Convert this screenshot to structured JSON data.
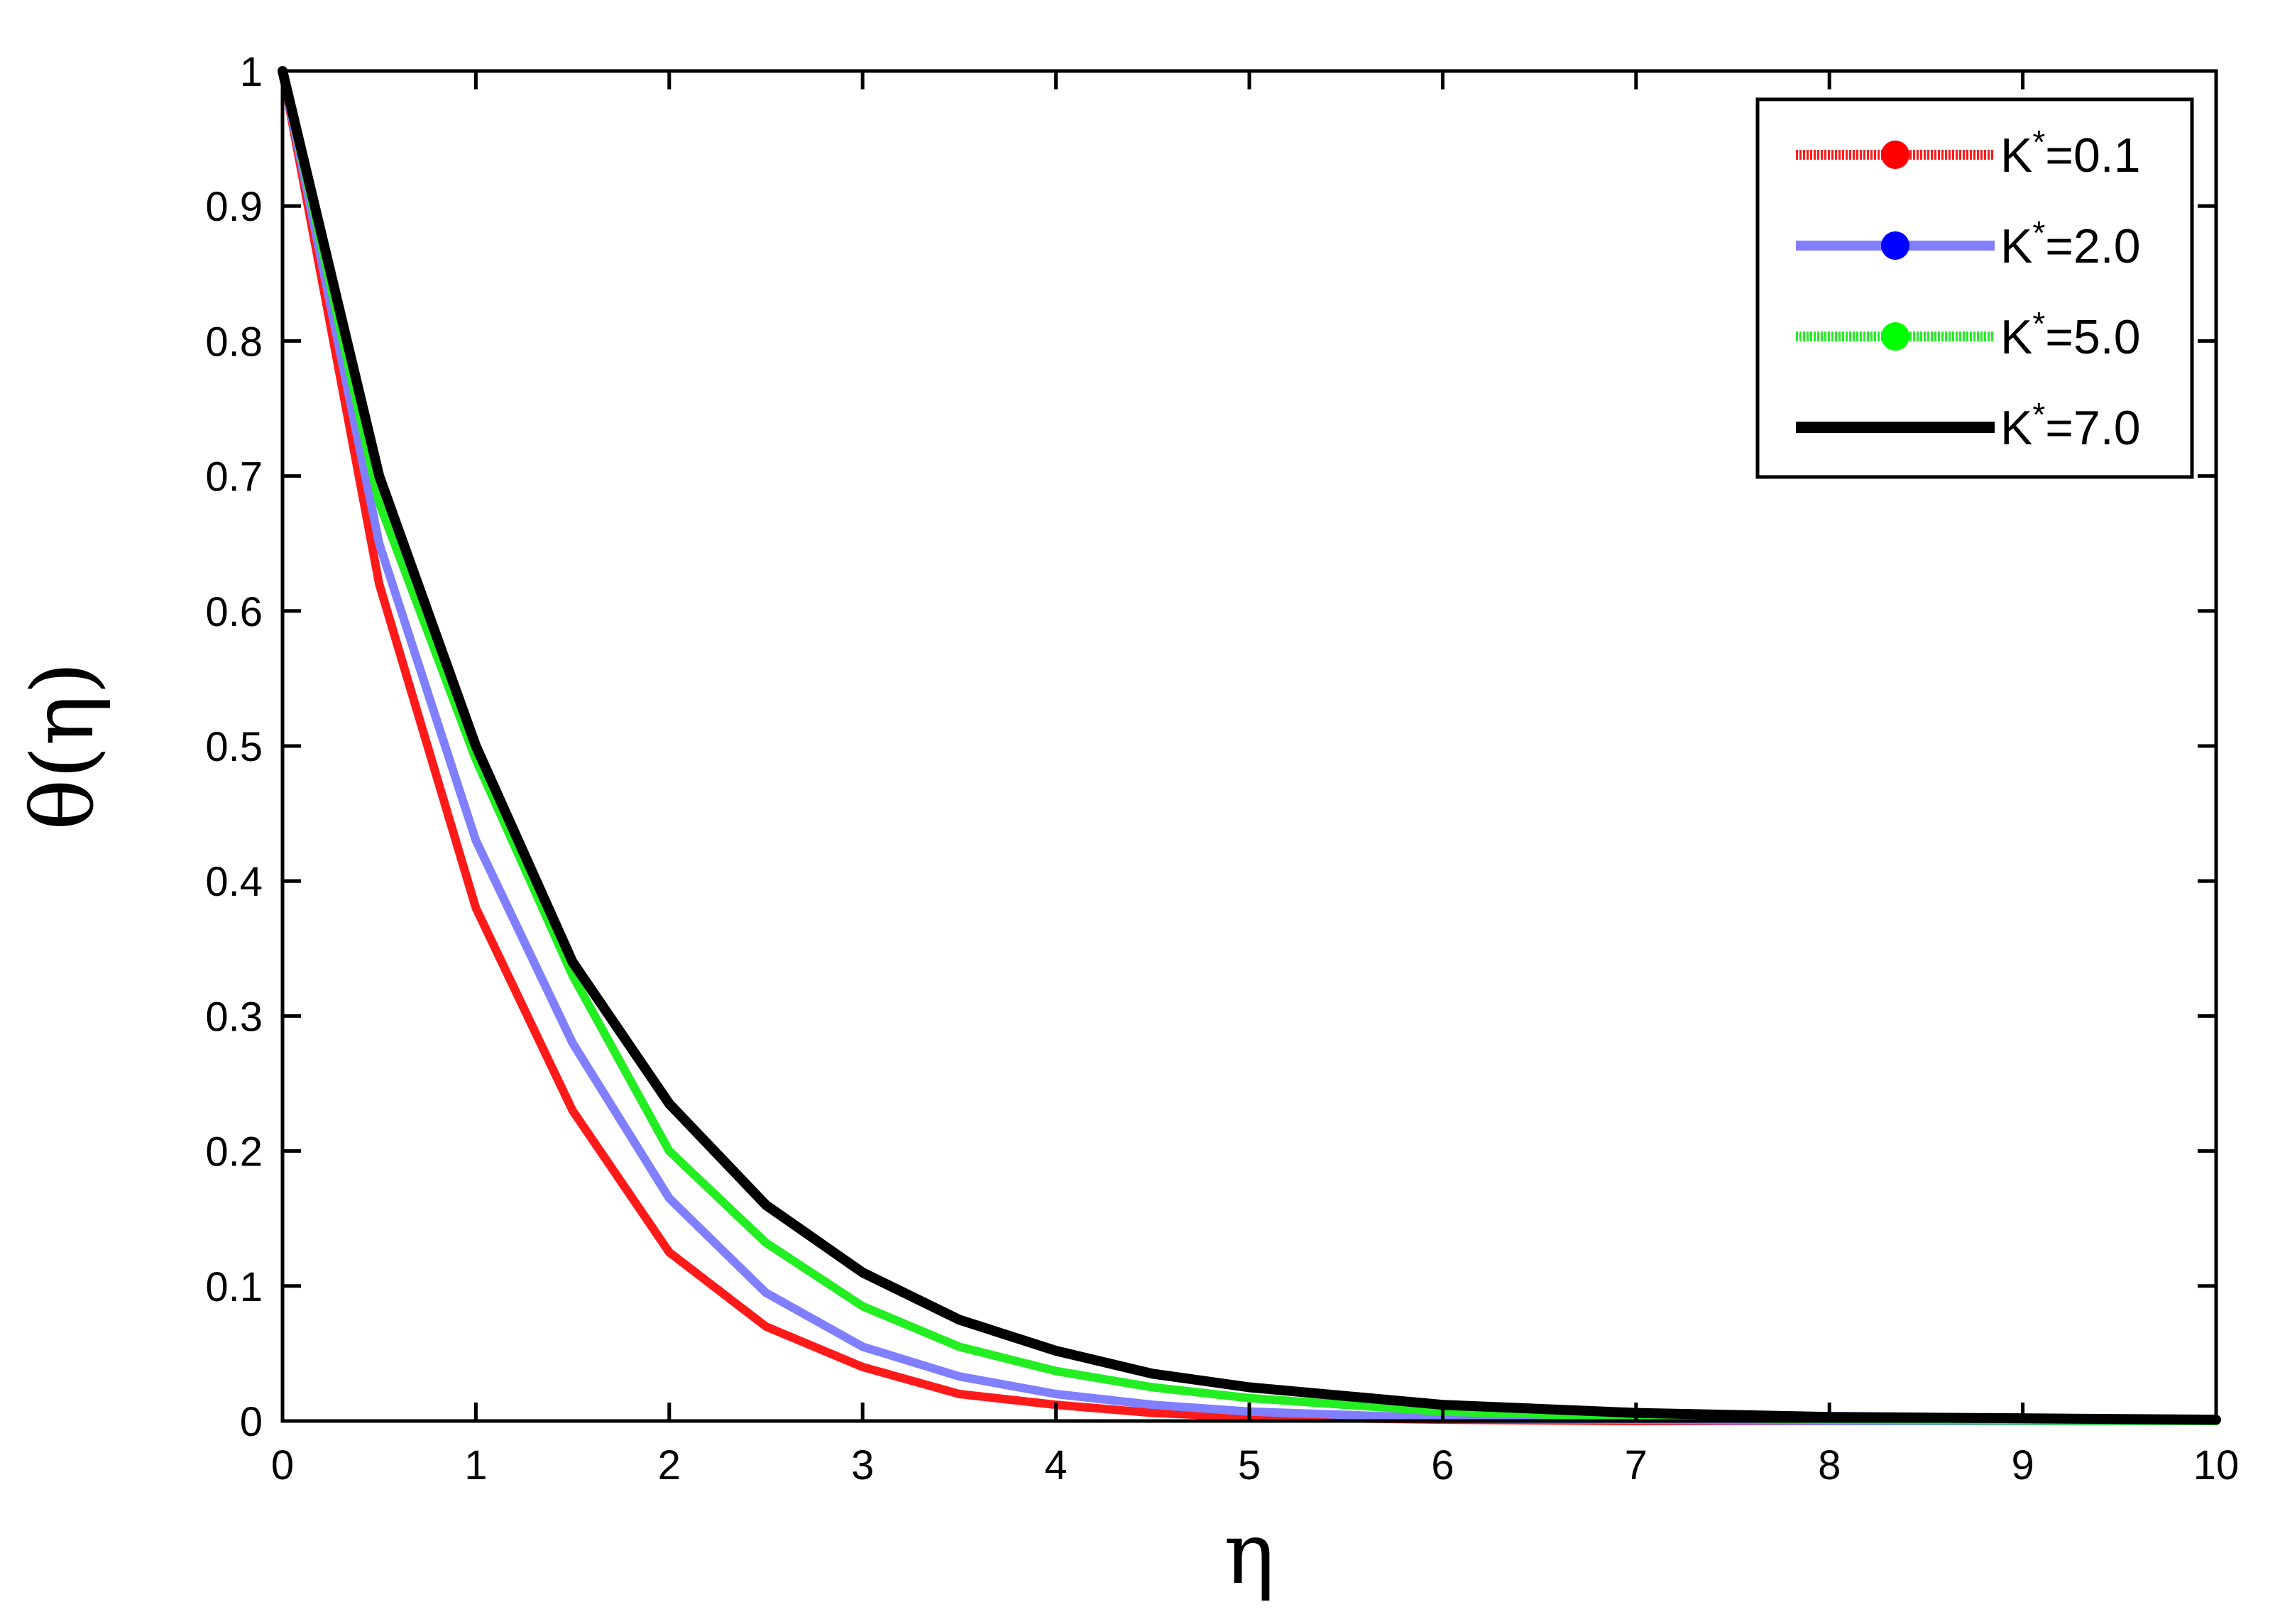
{
  "chart_data": {
    "type": "line",
    "xlabel": "η",
    "ylabel": "θ(η)",
    "xlim": [
      0,
      10
    ],
    "ylim": [
      0,
      1
    ],
    "x_ticks": [
      "0",
      "1",
      "2",
      "3",
      "4",
      "5",
      "6",
      "7",
      "8",
      "9",
      "10"
    ],
    "y_ticks": [
      "0",
      "0.1",
      "0.2",
      "0.3",
      "0.4",
      "0.5",
      "0.6",
      "0.7",
      "0.8",
      "0.9",
      "1"
    ],
    "grid": false,
    "legend_position": "top-right",
    "x": [
      0,
      0.5,
      1,
      1.5,
      2,
      2.5,
      3,
      3.5,
      4,
      4.5,
      5,
      6,
      7,
      8,
      10
    ],
    "series": [
      {
        "name": "K*=0.1",
        "name_base": "K",
        "name_sup": "*",
        "name_rest": "=0.1",
        "color": "#ff1a1a",
        "marker_color": "#ff0000",
        "style": "dotted",
        "values": [
          1,
          0.62,
          0.38,
          0.23,
          0.125,
          0.07,
          0.04,
          0.02,
          0.012,
          0.006,
          0.003,
          0.001,
          0,
          0,
          0
        ]
      },
      {
        "name": "K*=2.0",
        "name_base": "K",
        "name_sup": "*",
        "name_rest": "=2.0",
        "color": "#7f7fff",
        "marker_color": "#0000ff",
        "style": "solid",
        "values": [
          1,
          0.65,
          0.43,
          0.28,
          0.165,
          0.095,
          0.055,
          0.033,
          0.02,
          0.012,
          0.007,
          0.002,
          0.001,
          0,
          0
        ]
      },
      {
        "name": "K*=5.0",
        "name_base": "K",
        "name_sup": "*",
        "name_rest": "=5.0",
        "color": "#22ee22",
        "marker_color": "#00ff00",
        "style": "dotted",
        "values": [
          1,
          0.68,
          0.49,
          0.33,
          0.2,
          0.132,
          0.085,
          0.055,
          0.037,
          0.025,
          0.017,
          0.007,
          0.003,
          0.001,
          0
        ]
      },
      {
        "name": "K*=7.0",
        "name_base": "K",
        "name_sup": "*",
        "name_rest": "=7.0",
        "color": "#000000",
        "marker_color": "#000000",
        "style": "solid",
        "values": [
          1,
          0.7,
          0.5,
          0.34,
          0.235,
          0.16,
          0.11,
          0.075,
          0.052,
          0.035,
          0.025,
          0.012,
          0.006,
          0.003,
          0.001
        ]
      }
    ]
  }
}
